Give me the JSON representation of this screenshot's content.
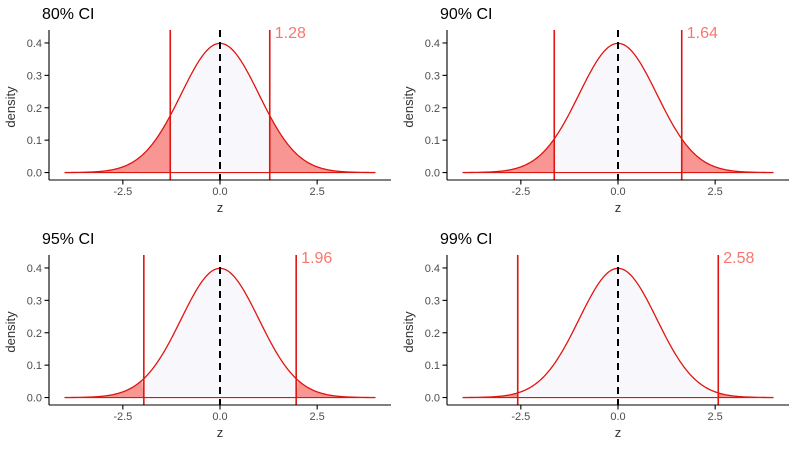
{
  "figure": {
    "description": "2x2 grid of standard normal density plots showing two-sided confidence interval critical values",
    "background": "#ffffff"
  },
  "style": {
    "curve_color": "#e0150f",
    "tail_fill": "#f79693",
    "center_fill": "#f8f8fc",
    "annotation_color": "#f9766e",
    "axis_line_color": "#000000",
    "tick_color": "#000000",
    "tick_label_color": "#4d4d4d",
    "axis_title_color": "#333333",
    "title_color": "#000000",
    "dashed_line_color": "#000000"
  },
  "chart_data": [
    {
      "type": "area",
      "title": "80% CI",
      "confidence_level": "80%",
      "critical_value": 1.28,
      "tail_boundaries": [
        -1.28,
        1.28
      ],
      "annotation": {
        "text": "1.28"
      },
      "curve": "standard normal density N(0,1) plotted for z in [-4, 4]",
      "peak_density": 0.3989,
      "center_line_x": 0,
      "xlabel": "z",
      "ylabel": "density",
      "x_ticks": [
        "-2.5",
        "0.0",
        "2.5"
      ],
      "x_tick_values": [
        -2.5,
        0,
        2.5
      ],
      "y_ticks": [
        "0.0",
        "0.1",
        "0.2",
        "0.3",
        "0.4"
      ],
      "y_tick_values": [
        0,
        0.1,
        0.2,
        0.3,
        0.4
      ],
      "xlim": [
        -4.4,
        4.4
      ],
      "ylim": [
        -0.023,
        0.44
      ],
      "grid": "off",
      "legend": "none"
    },
    {
      "type": "area",
      "title": "90% CI",
      "confidence_level": "90%",
      "critical_value": 1.64,
      "tail_boundaries": [
        -1.64,
        1.64
      ],
      "annotation": {
        "text": "1.64"
      },
      "curve": "standard normal density N(0,1) plotted for z in [-4, 4]",
      "peak_density": 0.3989,
      "center_line_x": 0,
      "xlabel": "z",
      "ylabel": "density",
      "x_ticks": [
        "-2.5",
        "0.0",
        "2.5"
      ],
      "x_tick_values": [
        -2.5,
        0,
        2.5
      ],
      "y_ticks": [
        "0.0",
        "0.1",
        "0.2",
        "0.3",
        "0.4"
      ],
      "y_tick_values": [
        0,
        0.1,
        0.2,
        0.3,
        0.4
      ],
      "xlim": [
        -4.4,
        4.4
      ],
      "ylim": [
        -0.023,
        0.44
      ],
      "grid": "off",
      "legend": "none"
    },
    {
      "type": "area",
      "title": "95% CI",
      "confidence_level": "95%",
      "critical_value": 1.96,
      "tail_boundaries": [
        -1.96,
        1.96
      ],
      "annotation": {
        "text": "1.96"
      },
      "curve": "standard normal density N(0,1) plotted for z in [-4, 4]",
      "peak_density": 0.3989,
      "center_line_x": 0,
      "xlabel": "z",
      "ylabel": "density",
      "x_ticks": [
        "-2.5",
        "0.0",
        "2.5"
      ],
      "x_tick_values": [
        -2.5,
        0,
        2.5
      ],
      "y_ticks": [
        "0.0",
        "0.1",
        "0.2",
        "0.3",
        "0.4"
      ],
      "y_tick_values": [
        0,
        0.1,
        0.2,
        0.3,
        0.4
      ],
      "xlim": [
        -4.4,
        4.4
      ],
      "ylim": [
        -0.023,
        0.44
      ],
      "grid": "off",
      "legend": "none"
    },
    {
      "type": "area",
      "title": "99% CI",
      "confidence_level": "99%",
      "critical_value": 2.58,
      "tail_boundaries": [
        -2.58,
        2.58
      ],
      "annotation": {
        "text": "2.58"
      },
      "curve": "standard normal density N(0,1) plotted for z in [-4, 4]",
      "peak_density": 0.3989,
      "center_line_x": 0,
      "xlabel": "z",
      "ylabel": "density",
      "x_ticks": [
        "-2.5",
        "0.0",
        "2.5"
      ],
      "x_tick_values": [
        -2.5,
        0,
        2.5
      ],
      "y_ticks": [
        "0.0",
        "0.1",
        "0.2",
        "0.3",
        "0.4"
      ],
      "y_tick_values": [
        0,
        0.1,
        0.2,
        0.3,
        0.4
      ],
      "xlim": [
        -4.4,
        4.4
      ],
      "ylim": [
        -0.023,
        0.44
      ],
      "grid": "off",
      "legend": "none"
    }
  ]
}
